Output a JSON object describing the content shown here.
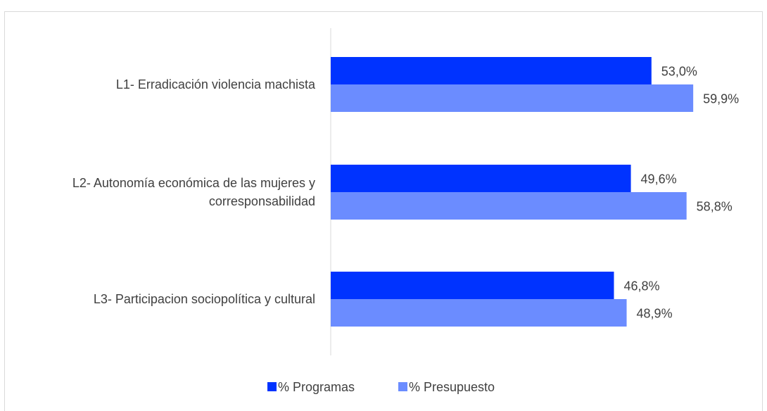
{
  "chart_data": {
    "type": "bar",
    "orientation": "horizontal",
    "categories": [
      [
        "L1- Erradicación violencia machista"
      ],
      [
        "L2- Autonomía económica de las mujeres y",
        "corresponsabilidad"
      ],
      [
        "L3- Participacion sociopolítica y cultural"
      ]
    ],
    "series": [
      {
        "name": "% Programas",
        "color": "#0033ff",
        "values": [
          53.0,
          49.6,
          46.8
        ],
        "labels": [
          "53,0%",
          "49,6%",
          "46,8%"
        ]
      },
      {
        "name": "% Presupuesto",
        "color": "#6b8cff",
        "values": [
          59.9,
          58.8,
          48.9
        ],
        "labels": [
          "59,9%",
          "58,8%",
          "48,9%"
        ]
      }
    ],
    "xlim": [
      0,
      70
    ],
    "grid": false,
    "legend": "bottom-center"
  }
}
